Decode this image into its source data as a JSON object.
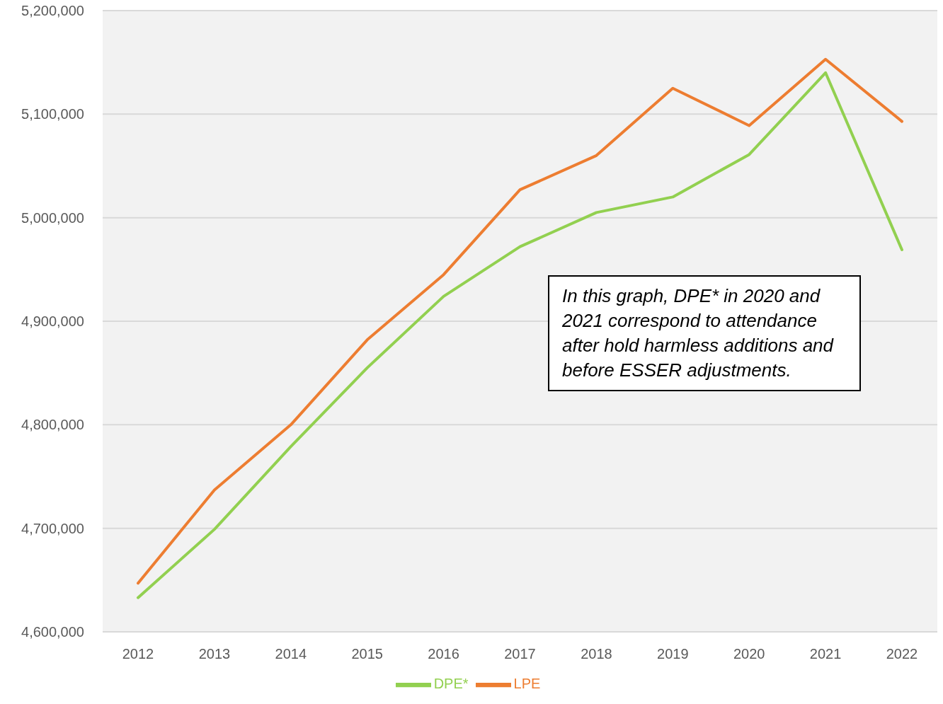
{
  "chart_data": {
    "type": "line",
    "categories": [
      "2012",
      "2013",
      "2014",
      "2015",
      "2016",
      "2017",
      "2018",
      "2019",
      "2020",
      "2021",
      "2022"
    ],
    "series": [
      {
        "name": "DPE*",
        "color": "#92d050",
        "values": [
          4633000,
          4699000,
          4779000,
          4855000,
          4924000,
          4972000,
          5005000,
          5020000,
          5061000,
          5140000,
          4969000
        ]
      },
      {
        "name": "LPE",
        "color": "#ed7d31",
        "values": [
          4647000,
          4737000,
          4800000,
          4882000,
          4945000,
          5027000,
          5060000,
          5125000,
          5089000,
          5153000,
          5093000
        ]
      }
    ],
    "ylim": [
      4600000,
      5200000
    ],
    "yticks": [
      {
        "value": 4600000,
        "label": "4,600,000"
      },
      {
        "value": 4700000,
        "label": "4,700,000"
      },
      {
        "value": 4800000,
        "label": "4,800,000"
      },
      {
        "value": 4900000,
        "label": "4,900,000"
      },
      {
        "value": 5000000,
        "label": "5,000,000"
      },
      {
        "value": 5100000,
        "label": "5,100,000"
      },
      {
        "value": 5200000,
        "label": "5,200,000"
      }
    ],
    "grid": "y",
    "legend": "bottom",
    "marker": "none",
    "line_style": "solid",
    "annotations": [
      "In this graph, DPE* in 2020 and 2021 correspond to attendance after hold harmless additions and before ESSER adjustments."
    ]
  }
}
